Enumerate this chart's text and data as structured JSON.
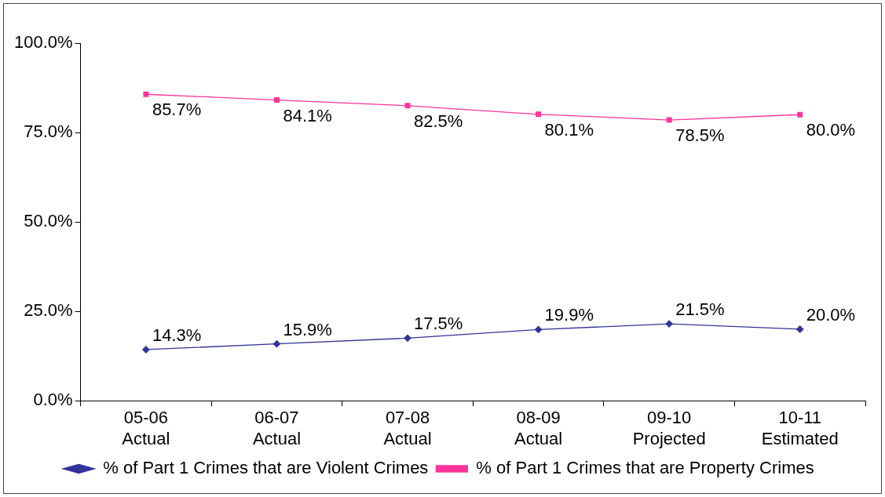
{
  "chart_data": {
    "type": "line",
    "categories": [
      "05-06 Actual",
      "06-07 Actual",
      "07-08 Actual",
      "08-09 Actual",
      "09-10 Projected",
      "10-11 Estimated"
    ],
    "series": [
      {
        "name": "% of Part 1 Crimes that are Violent Crimes",
        "color": "#333399",
        "marker": "diamond",
        "values": [
          14.3,
          15.9,
          17.5,
          19.9,
          21.5,
          20.0
        ],
        "value_labels": [
          "14.3%",
          "15.9%",
          "17.5%",
          "19.9%",
          "21.5%",
          "20.0%"
        ]
      },
      {
        "name": "% of Part 1 Crimes that are Property Crimes",
        "color": "#ff3399",
        "marker": "square",
        "values": [
          85.7,
          84.1,
          82.5,
          80.1,
          78.5,
          80.0
        ],
        "value_labels": [
          "85.7%",
          "84.1%",
          "82.5%",
          "80.1%",
          "78.5%",
          "80.0%"
        ]
      }
    ],
    "ylim": [
      0,
      100
    ],
    "yticks": [
      {
        "value": 0,
        "label": "0.0%"
      },
      {
        "value": 25,
        "label": "25.0%"
      },
      {
        "value": 50,
        "label": "50.0%"
      },
      {
        "value": 75,
        "label": "75.0%"
      },
      {
        "value": 100,
        "label": "100.0%"
      }
    ],
    "grid": false,
    "legend": "bottom",
    "line_style": "solid"
  }
}
